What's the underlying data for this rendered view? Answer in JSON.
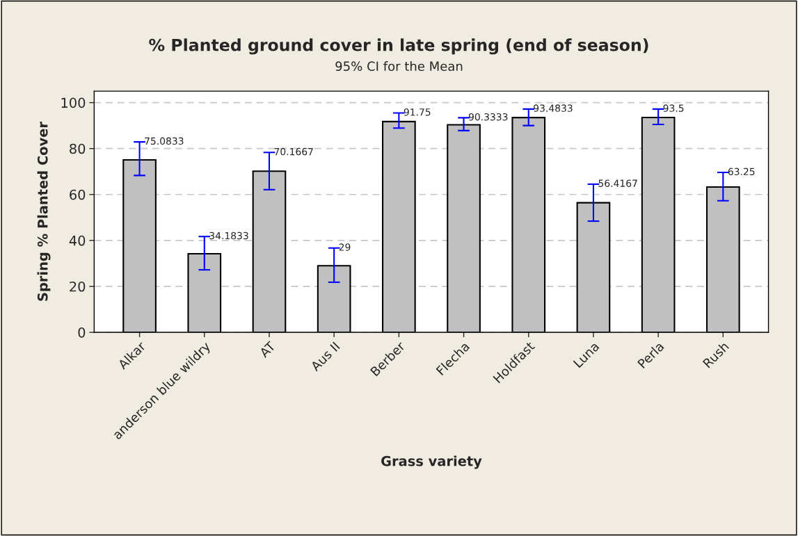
{
  "chart_data": {
    "type": "bar",
    "title": "% Planted ground cover in late spring (end of season)",
    "subtitle": "95% CI for the Mean",
    "xlabel": "Grass variety",
    "ylabel": "Spring % Planted Cover",
    "categories": [
      "Alkar",
      "anderson blue wildry",
      "AT",
      "Aus II",
      "Berber",
      "Flecha",
      "Holdfast",
      "Luna",
      "Perla",
      "Rush"
    ],
    "values": [
      75.0833,
      34.1833,
      70.1667,
      29,
      91.75,
      90.3333,
      93.4833,
      56.4167,
      93.5,
      63.25
    ],
    "errors": [
      [
        68.3,
        82.9
      ],
      [
        27.2,
        41.7
      ],
      [
        62.1,
        78.3
      ],
      [
        21.8,
        36.7
      ],
      [
        88.9,
        95.5
      ],
      [
        87.8,
        93.4
      ],
      [
        90.0,
        97.2
      ],
      [
        48.4,
        64.5
      ],
      [
        90.5,
        97.2
      ],
      [
        57.3,
        69.6
      ]
    ],
    "color": "#c0c0c0",
    "ylim": [
      0,
      105
    ],
    "yticks": [
      0,
      20,
      40,
      60,
      80,
      100
    ],
    "grid": "y",
    "data_labels": true
  }
}
